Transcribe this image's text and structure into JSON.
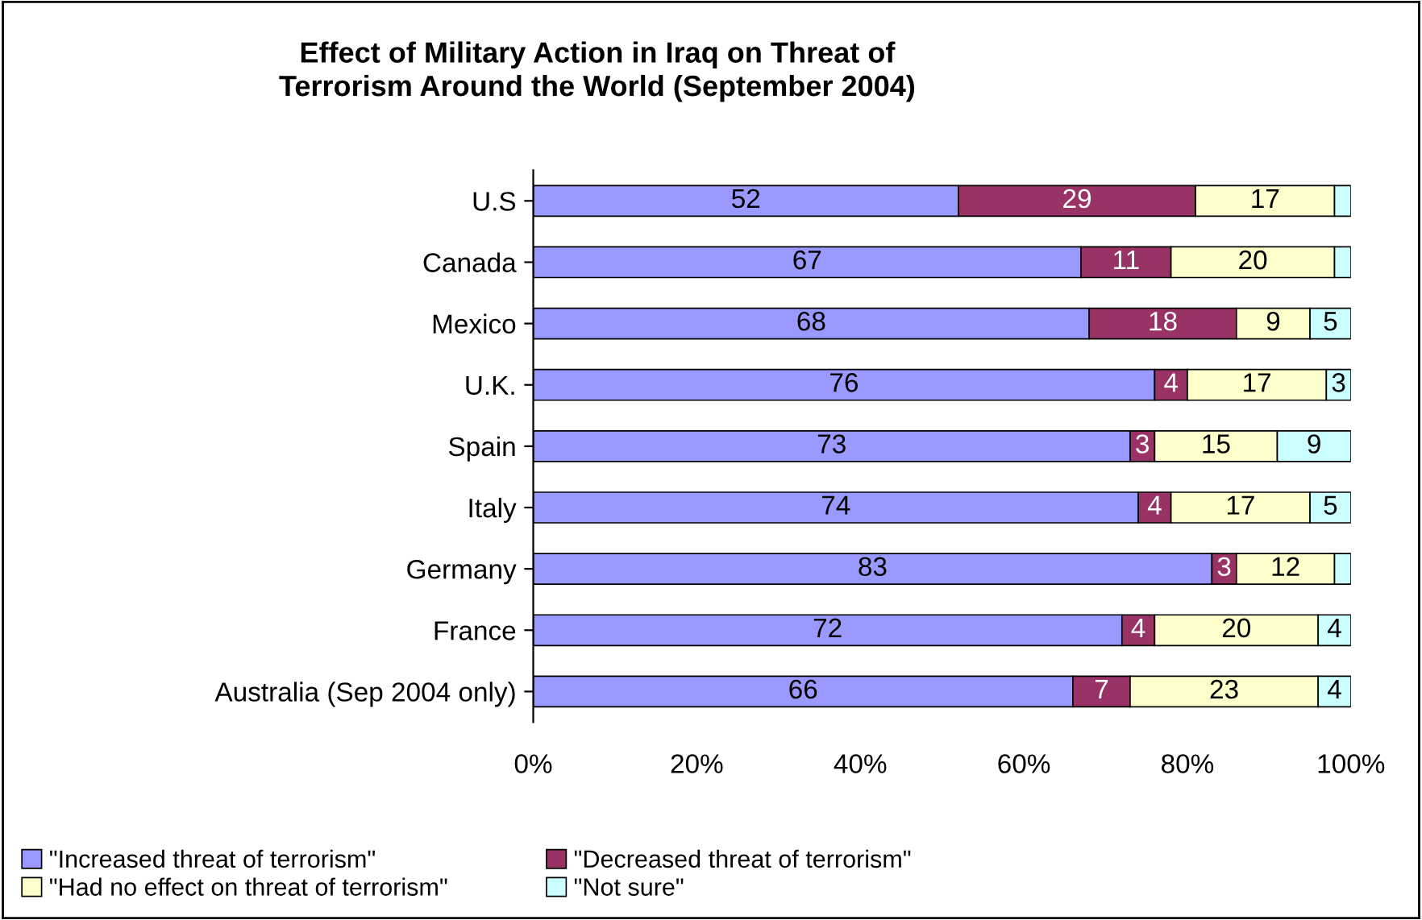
{
  "chart_data": {
    "type": "bar",
    "orientation": "horizontal",
    "stacked": true,
    "title": "Effect of Military Action in Iraq on Threat of\nTerrorism Around the World (September 2004)",
    "categories": [
      "U.S",
      "Canada",
      "Mexico",
      "U.K.",
      "Spain",
      "Italy",
      "Germany",
      "France",
      "Australia (Sep 2004 only)"
    ],
    "series": [
      {
        "name": "\"Increased threat of terrorism\"",
        "color": "#9999ff",
        "values": [
          52,
          67,
          68,
          76,
          73,
          74,
          83,
          72,
          66
        ],
        "value_labels": [
          "52",
          "67",
          "68",
          "76",
          "73",
          "74",
          "83",
          "72",
          "66"
        ]
      },
      {
        "name": "\"Decreased threat of terrorism\"",
        "color": "#993366",
        "values": [
          29,
          11,
          18,
          4,
          3,
          4,
          3,
          4,
          7
        ],
        "value_labels": [
          "29",
          "11",
          "18",
          "4",
          "3",
          "4",
          "3",
          "4",
          "7"
        ]
      },
      {
        "name": "\"Had no effect on threat of terrorism\"",
        "color": "#ffffcc",
        "values": [
          17,
          20,
          9,
          17,
          15,
          17,
          12,
          20,
          23
        ],
        "value_labels": [
          "17",
          "20",
          "9",
          "17",
          "15",
          "17",
          "12",
          "20",
          "23"
        ]
      },
      {
        "name": "\"Not sure\"",
        "color": "#ccffff",
        "values": [
          2,
          2,
          5,
          3,
          9,
          5,
          2,
          4,
          4
        ],
        "value_labels": [
          null,
          null,
          "5",
          "3",
          "9",
          "5",
          null,
          "4",
          "4"
        ]
      }
    ],
    "xlim": [
      0,
      100
    ],
    "xticks": [
      {
        "value": 0,
        "label": "0%"
      },
      {
        "value": 20,
        "label": "20%"
      },
      {
        "value": 40,
        "label": "40%"
      },
      {
        "value": 60,
        "label": "60%"
      },
      {
        "value": 80,
        "label": "80%"
      },
      {
        "value": 100,
        "label": "100%"
      }
    ],
    "grid": false,
    "legend": "bottom"
  }
}
